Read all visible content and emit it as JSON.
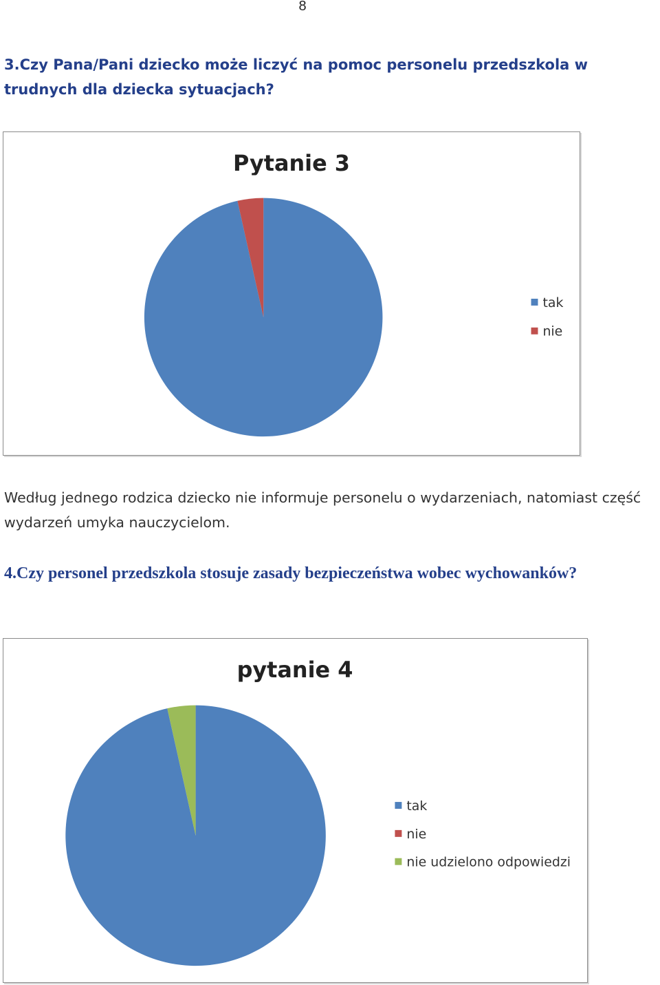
{
  "page": {
    "number": "8"
  },
  "question3": {
    "text": "3.Czy Pana/Pani dziecko może liczyć na pomoc personelu przedszkola w trudnych dla dziecka sytuacjach?"
  },
  "paragraph": {
    "text": "Według jednego rodzica dziecko nie informuje personelu o wydarzeniach, natomiast część wydarzeń  umyka nauczycielom."
  },
  "question4": {
    "text": "4.Czy personel przedszkola stosuje zasady bezpieczeństwa wobec wychowanków?"
  },
  "chart_data": [
    {
      "type": "pie",
      "title": "Pytanie 3",
      "legend_position": "right",
      "series": [
        {
          "name": "tak",
          "value": 96.5,
          "color": "#4f81bd"
        },
        {
          "name": "nie",
          "value": 3.5,
          "color": "#c0504d"
        }
      ]
    },
    {
      "type": "pie",
      "title": "pytanie 4",
      "legend_position": "right",
      "series": [
        {
          "name": "tak",
          "value": 96.5,
          "color": "#4f81bd"
        },
        {
          "name": "nie",
          "value": 0,
          "color": "#c0504d"
        },
        {
          "name": "nie udzielono odpowiedzi",
          "value": 3.5,
          "color": "#9bbb59"
        }
      ]
    }
  ]
}
